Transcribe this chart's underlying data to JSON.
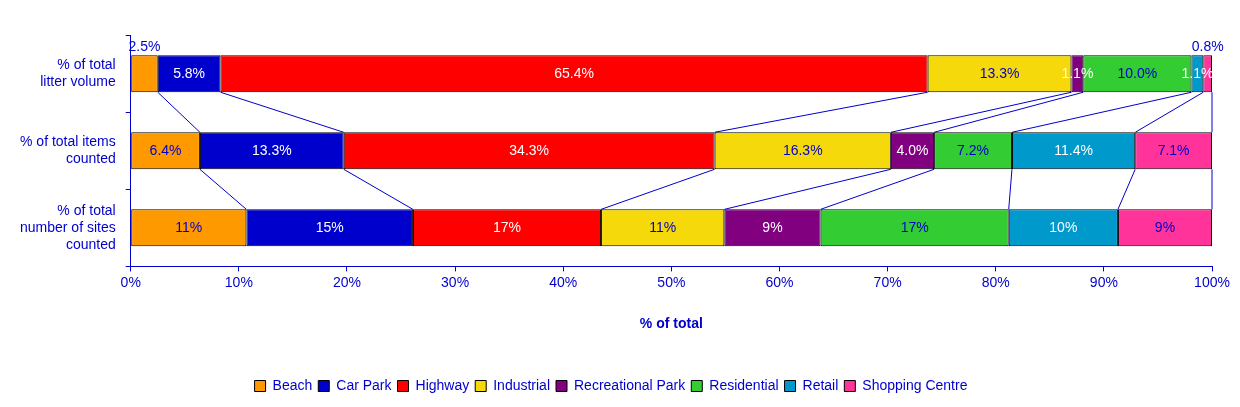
{
  "chart_data": {
    "type": "bar",
    "orientation": "horizontal",
    "stacked": true,
    "xlabel": "% of total",
    "categories": [
      "% of total litter volume",
      "% of total items counted",
      "% of total number of sites counted"
    ],
    "xlim": [
      0,
      100
    ],
    "xticks": [
      {
        "value": 0,
        "label": "0%"
      },
      {
        "value": 10,
        "label": "10%"
      },
      {
        "value": 20,
        "label": "20%"
      },
      {
        "value": 30,
        "label": "30%"
      },
      {
        "value": 40,
        "label": "40%"
      },
      {
        "value": 50,
        "label": "50%"
      },
      {
        "value": 60,
        "label": "60%"
      },
      {
        "value": 70,
        "label": "70%"
      },
      {
        "value": 80,
        "label": "80%"
      },
      {
        "value": 90,
        "label": "90%"
      },
      {
        "value": 100,
        "label": "100%"
      }
    ],
    "grid": false,
    "legend": "bottom",
    "series": [
      {
        "name": "Beach",
        "color": "#ff9900",
        "values": [
          2.5,
          6.4,
          10.7
        ],
        "value_labels": [
          "2.5%",
          "6.4%",
          "11%"
        ]
      },
      {
        "name": "Car Park",
        "color": "#0000cc",
        "values": [
          5.8,
          13.3,
          15.4
        ],
        "value_labels": [
          "5.8%",
          "13.3%",
          "15%"
        ]
      },
      {
        "name": "Highway",
        "color": "#ff0000",
        "values": [
          65.4,
          34.3,
          17.4
        ],
        "value_labels": [
          "65.4%",
          "34.3%",
          "17%"
        ]
      },
      {
        "name": "Industrial",
        "color": "#f5d90a",
        "values": [
          13.3,
          16.3,
          11.4
        ],
        "value_labels": [
          "13.3%",
          "16.3%",
          "11%"
        ]
      },
      {
        "name": "Recreational Park",
        "color": "#800080",
        "values": [
          1.1,
          4.0,
          8.9
        ],
        "value_labels": [
          "1.1%",
          "4.0%",
          "9%"
        ]
      },
      {
        "name": "Residential",
        "color": "#33cc33",
        "values": [
          10.0,
          7.2,
          17.4
        ],
        "value_labels": [
          "10.0%",
          "7.2%",
          "17%"
        ]
      },
      {
        "name": "Retail",
        "color": "#0099cc",
        "values": [
          1.1,
          11.4,
          10.1
        ],
        "value_labels": [
          "1.1%",
          "11.4%",
          "10%"
        ]
      },
      {
        "name": "Shopping Centre",
        "color": "#ff3399",
        "values": [
          0.8,
          7.1,
          8.7
        ],
        "value_labels": [
          "0.8%",
          "7.1%",
          "9%"
        ]
      }
    ]
  }
}
